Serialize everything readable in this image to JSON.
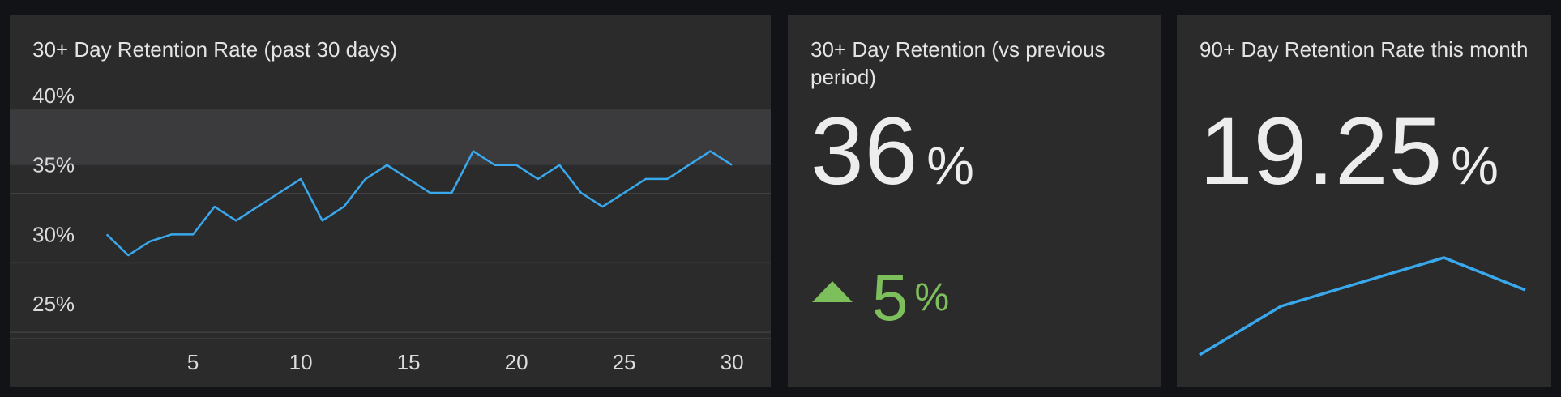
{
  "panels": {
    "retention_chart": {
      "title": "30+ Day Retention Rate (past 30 days)"
    },
    "retention_vs_previous": {
      "title": "30+ Day Retention (vs previous period)",
      "value": "36",
      "unit": "%",
      "delta_value": "5",
      "delta_unit": "%",
      "delta_direction": "up",
      "delta_color": "#7dbf5b"
    },
    "retention_90": {
      "title": "90+ Day Retention Rate this month",
      "value": "19.25",
      "unit": "%"
    }
  },
  "chart_data": [
    {
      "type": "line",
      "title": "30+ Day Retention Rate (past 30 days)",
      "x": [
        1,
        2,
        3,
        4,
        5,
        6,
        7,
        8,
        9,
        10,
        11,
        12,
        13,
        14,
        15,
        16,
        17,
        18,
        19,
        20,
        21,
        22,
        23,
        24,
        25,
        26,
        27,
        28,
        29,
        30
      ],
      "series": [
        {
          "values": [
            30,
            28.5,
            29.5,
            30,
            30,
            32,
            31,
            32,
            33,
            34,
            31,
            32,
            34,
            35,
            34,
            33,
            33,
            36,
            35,
            35,
            34,
            35,
            33,
            32,
            33,
            34,
            34,
            35,
            36,
            35
          ],
          "color": "#3aa8ec"
        }
      ],
      "x_ticks": [
        "5",
        "10",
        "15",
        "20",
        "25",
        "30"
      ],
      "x_tick_values": [
        5,
        10,
        15,
        20,
        25,
        30
      ],
      "y_ticks": [
        "25%",
        "30%",
        "35%",
        "40%"
      ],
      "y_tick_values": [
        25,
        30,
        35,
        40
      ],
      "ylim": [
        22.5,
        40
      ],
      "xlim": [
        -3.5,
        31.8
      ],
      "band": [
        35,
        39
      ],
      "band_color": "#3b3b3e",
      "grid": true
    },
    {
      "type": "line",
      "x": [
        1,
        2,
        3,
        4,
        5
      ],
      "series": [
        {
          "values": [
            12,
            18,
            21,
            24,
            20
          ],
          "color": "#3aa8ec"
        }
      ],
      "ylim": [
        11,
        26
      ],
      "grid": false
    }
  ]
}
